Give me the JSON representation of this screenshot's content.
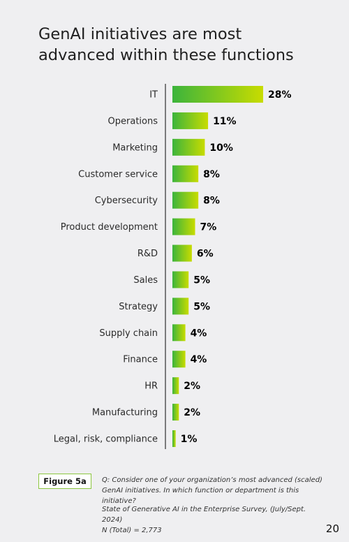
{
  "title_lines": [
    "GenAI initiatives are most",
    "advanced within these functions"
  ],
  "chart_data": {
    "type": "bar",
    "orientation": "horizontal",
    "categories": [
      "IT",
      "Operations",
      "Marketing",
      "Customer service",
      "Cybersecurity",
      "Product development",
      "R&D",
      "Sales",
      "Strategy",
      "Supply chain",
      "Finance",
      "HR",
      "Manufacturing",
      "Legal, risk, compliance"
    ],
    "values": [
      28,
      11,
      10,
      8,
      8,
      7,
      6,
      5,
      5,
      4,
      4,
      2,
      2,
      1
    ],
    "value_labels": [
      "28%",
      "11%",
      "10%",
      "8%",
      "8%",
      "7%",
      "6%",
      "5%",
      "5%",
      "4%",
      "4%",
      "2%",
      "2%",
      "1%"
    ],
    "bar_gradient": [
      "#3cb43c",
      "#c8dc00"
    ],
    "axis_color": "#555555"
  },
  "figure_label": "Figure 5a",
  "question_lines": [
    "Q: Consider one of your organization’s most advanced (scaled)",
    "GenAI initiatives. In which function or department is this initiative?"
  ],
  "source_lines": [
    "State of Generative AI in the Enterprise Survey, (July/Sept. 2024)",
    "N (Total) = 2,773"
  ],
  "page_number": "20"
}
